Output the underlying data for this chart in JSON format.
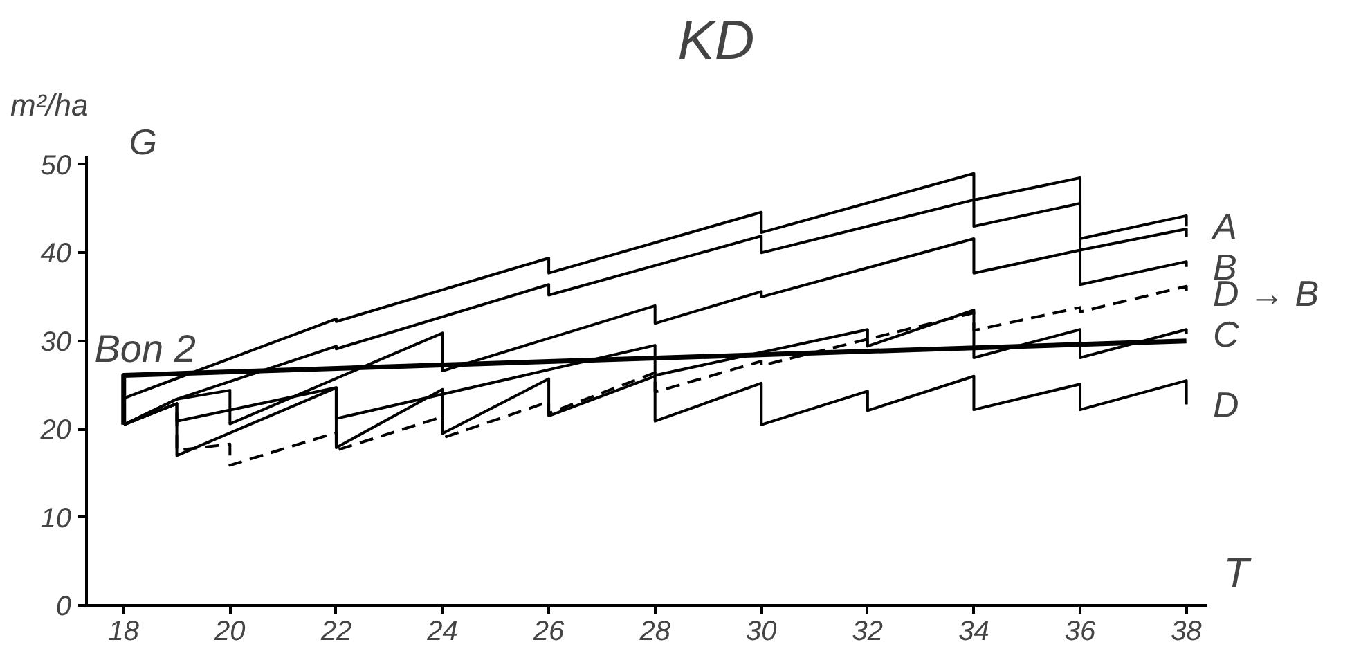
{
  "chart_data": {
    "type": "line",
    "title": "KD",
    "xlabel": "T",
    "ylabel": "m²/ha",
    "annotations": [
      "G"
    ],
    "xlim": [
      17.3,
      38.4
    ],
    "ylim": [
      0,
      51
    ],
    "xticks": [
      18,
      20,
      22,
      24,
      26,
      28,
      30,
      32,
      34,
      36,
      38
    ],
    "yticks": [
      0,
      10,
      20,
      30,
      40,
      50
    ],
    "grid": false,
    "marker": "none",
    "line_style": "solid",
    "series": [
      {
        "name": "A",
        "color": "#000000",
        "x": [
          18,
          22,
          22,
          26,
          26,
          30,
          30,
          34,
          34,
          36,
          36,
          38,
          38
        ],
        "values": [
          23.5,
          32.5,
          32.2,
          39.4,
          37.7,
          44.6,
          42.3,
          49.0,
          46.0,
          48.5,
          41.6,
          44.2,
          43.0
        ]
      },
      {
        "color": "#000000",
        "x": [
          18,
          19,
          22,
          22,
          26,
          26,
          30,
          30,
          34,
          34,
          36,
          36,
          38,
          38
        ],
        "values": [
          20.5,
          23.4,
          29.4,
          29.1,
          36.4,
          35.2,
          41.9,
          40.0,
          46.0,
          43.0,
          45.6,
          40.3,
          42.7,
          41.8
        ]
      },
      {
        "name": "B",
        "color": "#000000",
        "x": [
          18,
          19,
          20,
          20,
          24,
          24,
          28,
          28,
          30,
          30,
          34,
          34,
          36,
          36,
          38,
          38
        ],
        "values": [
          20.5,
          23.4,
          24.4,
          20.6,
          30.9,
          26.6,
          34.0,
          32.0,
          35.6,
          35.0,
          41.6,
          37.7,
          40.3,
          36.4,
          39.0,
          38.4
        ]
      },
      {
        "name": "D → B",
        "color": "#000000",
        "line_style": "dashed",
        "x": [
          18,
          19,
          19,
          20,
          20,
          22,
          22,
          24,
          24,
          26,
          26,
          28,
          28,
          30,
          30,
          34,
          34,
          36,
          36,
          38,
          38
        ],
        "values": [
          20.5,
          22.9,
          17.6,
          18.3,
          15.9,
          19.6,
          17.6,
          21.4,
          19.0,
          23.1,
          21.8,
          26.4,
          24.2,
          27.7,
          27.2,
          33.2,
          31.2,
          33.8,
          33.3,
          36.2,
          35.4
        ]
      },
      {
        "name": "C",
        "color": "#000000",
        "x": [
          18,
          19,
          19,
          22,
          22,
          28,
          28,
          32,
          32,
          34,
          34,
          36,
          36,
          38,
          38
        ],
        "values": [
          20.5,
          22.9,
          20.9,
          24.7,
          21.2,
          29.5,
          26.1,
          31.3,
          29.4,
          33.5,
          28.1,
          31.3,
          28.1,
          31.3,
          30.8
        ]
      },
      {
        "name": "D",
        "color": "#000000",
        "x": [
          18,
          19,
          19,
          22,
          22,
          24,
          24,
          26,
          26,
          28,
          28,
          30,
          30,
          32,
          32,
          34,
          34,
          36,
          36,
          38,
          38
        ],
        "values": [
          20.5,
          22.9,
          17.0,
          24.7,
          17.9,
          24.5,
          19.5,
          25.7,
          21.5,
          26.0,
          20.9,
          25.2,
          20.5,
          24.3,
          22.1,
          26.0,
          22.2,
          25.1,
          22.2,
          25.5,
          22.8
        ]
      },
      {
        "name": "Bon 2",
        "color": "#000000",
        "x": [
          18,
          18,
          38
        ],
        "values": [
          20.5,
          26.1,
          30.0
        ]
      }
    ]
  }
}
